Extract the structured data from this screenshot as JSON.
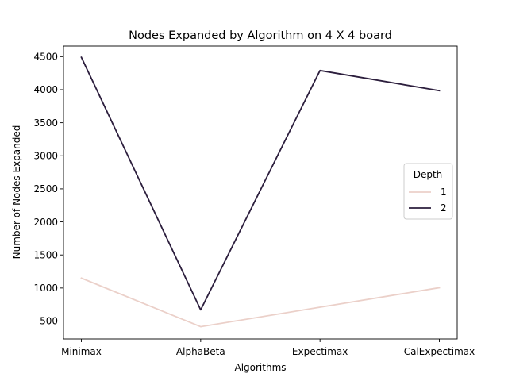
{
  "chart_data": {
    "type": "line",
    "title": "Nodes Expanded by Algorithm on 4 X 4 board",
    "xlabel": "Algorithms",
    "ylabel": "Number of Nodes Expanded",
    "categories": [
      "Minimax",
      "AlphaBeta",
      "Expectimax",
      "CalExpectimax"
    ],
    "ylim": [
      230,
      4660
    ],
    "yticks": [
      500,
      1000,
      1500,
      2000,
      2500,
      3000,
      3500,
      4000,
      4500
    ],
    "grid": false,
    "legend": {
      "title": "Depth",
      "placement": "center-right"
    },
    "series": [
      {
        "name": "1",
        "color": "#ebd0c9",
        "values": [
          1150,
          415,
          710,
          1005
        ]
      },
      {
        "name": "2",
        "color": "#2c1e3d",
        "values": [
          4490,
          670,
          4290,
          3985
        ]
      }
    ]
  }
}
